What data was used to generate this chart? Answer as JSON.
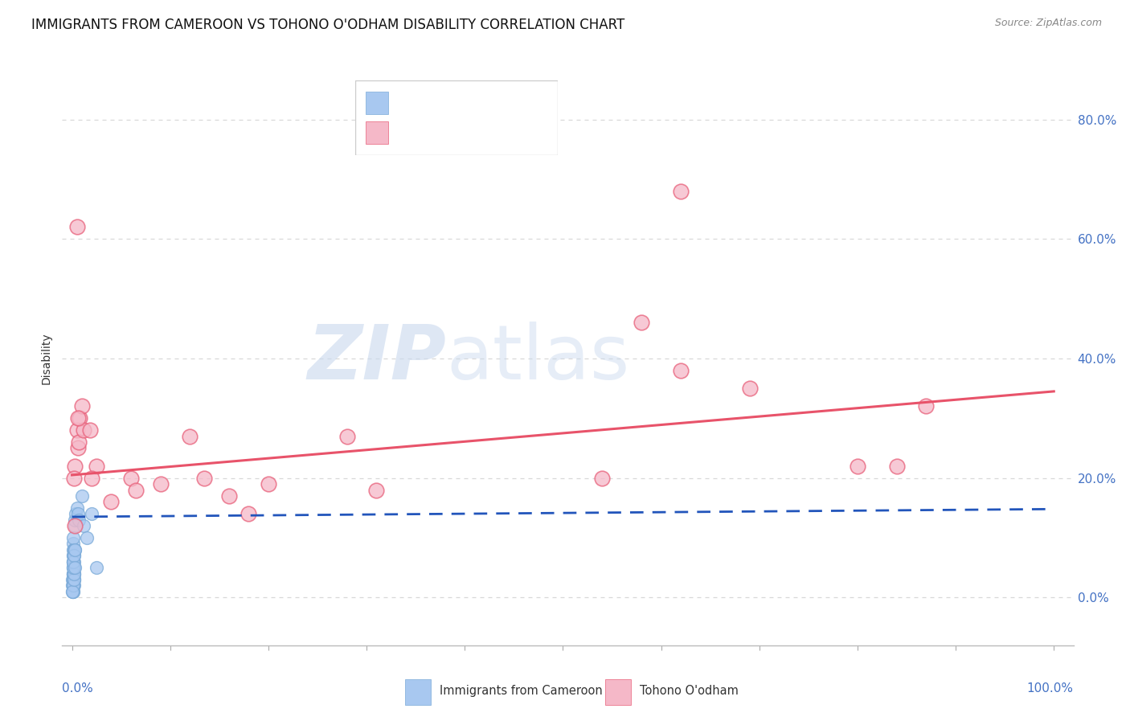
{
  "title": "IMMIGRANTS FROM CAMEROON VS TOHONO O'ODHAM DISABILITY CORRELATION CHART",
  "source": "Source: ZipAtlas.com",
  "ylabel": "Disability",
  "xlim": [
    -0.01,
    1.02
  ],
  "ylim": [
    -0.08,
    0.88
  ],
  "yticks": [
    0.0,
    0.2,
    0.4,
    0.6,
    0.8
  ],
  "ytick_labels": [
    "0.0%",
    "20.0%",
    "40.0%",
    "60.0%",
    "80.0%"
  ],
  "xtick_left_label": "0.0%",
  "xtick_right_label": "100.0%",
  "blue_color": "#a8c8f0",
  "blue_edge_color": "#7aaad8",
  "pink_color": "#f5b8c8",
  "pink_edge_color": "#e8607a",
  "blue_line_color": "#2255bb",
  "pink_line_color": "#e8536a",
  "blue_scatter": [
    [
      0.0005,
      0.02
    ],
    [
      0.001,
      0.04
    ],
    [
      0.001,
      0.06
    ],
    [
      0.0015,
      0.05
    ],
    [
      0.002,
      0.03
    ],
    [
      0.001,
      0.01
    ],
    [
      0.002,
      0.08
    ],
    [
      0.0015,
      0.07
    ],
    [
      0.001,
      0.09
    ],
    [
      0.002,
      0.05
    ],
    [
      0.0015,
      0.06
    ],
    [
      0.001,
      0.04
    ],
    [
      0.001,
      0.03
    ],
    [
      0.0008,
      0.02
    ],
    [
      0.002,
      0.04
    ],
    [
      0.002,
      0.05
    ],
    [
      0.0005,
      0.01
    ],
    [
      0.001,
      0.02
    ],
    [
      0.002,
      0.07
    ],
    [
      0.0008,
      0.06
    ],
    [
      0.0015,
      0.08
    ],
    [
      0.0005,
      0.03
    ],
    [
      0.002,
      0.04
    ],
    [
      0.0018,
      0.02
    ],
    [
      0.001,
      0.01
    ],
    [
      0.0008,
      0.05
    ],
    [
      0.002,
      0.03
    ],
    [
      0.0012,
      0.04
    ],
    [
      0.0008,
      0.02
    ],
    [
      0.002,
      0.06
    ],
    [
      0.0012,
      0.07
    ],
    [
      0.002,
      0.05
    ],
    [
      0.0008,
      0.04
    ],
    [
      0.0015,
      0.03
    ],
    [
      0.003,
      0.12
    ],
    [
      0.002,
      0.08
    ],
    [
      0.003,
      0.13
    ],
    [
      0.001,
      0.02
    ],
    [
      0.0005,
      0.01
    ],
    [
      0.002,
      0.03
    ],
    [
      0.002,
      0.04
    ],
    [
      0.001,
      0.05
    ],
    [
      0.0008,
      0.06
    ],
    [
      0.004,
      0.14
    ],
    [
      0.003,
      0.08
    ],
    [
      0.002,
      0.07
    ],
    [
      0.005,
      0.15
    ],
    [
      0.003,
      0.05
    ],
    [
      0.006,
      0.14
    ],
    [
      0.0015,
      0.1
    ],
    [
      0.003,
      0.08
    ],
    [
      0.007,
      0.13
    ],
    [
      0.01,
      0.17
    ],
    [
      0.012,
      0.12
    ],
    [
      0.015,
      0.1
    ],
    [
      0.02,
      0.14
    ],
    [
      0.025,
      0.05
    ]
  ],
  "pink_scatter": [
    [
      0.003,
      0.22
    ],
    [
      0.006,
      0.25
    ],
    [
      0.005,
      0.28
    ],
    [
      0.008,
      0.3
    ],
    [
      0.007,
      0.26
    ],
    [
      0.002,
      0.2
    ],
    [
      0.01,
      0.32
    ],
    [
      0.003,
      0.12
    ],
    [
      0.012,
      0.28
    ],
    [
      0.006,
      0.3
    ],
    [
      0.018,
      0.28
    ],
    [
      0.025,
      0.22
    ],
    [
      0.02,
      0.2
    ],
    [
      0.04,
      0.16
    ],
    [
      0.06,
      0.2
    ],
    [
      0.065,
      0.18
    ],
    [
      0.09,
      0.19
    ],
    [
      0.12,
      0.27
    ],
    [
      0.135,
      0.2
    ],
    [
      0.16,
      0.17
    ],
    [
      0.18,
      0.14
    ],
    [
      0.2,
      0.19
    ],
    [
      0.28,
      0.27
    ],
    [
      0.31,
      0.18
    ],
    [
      0.54,
      0.2
    ],
    [
      0.58,
      0.46
    ],
    [
      0.62,
      0.38
    ],
    [
      0.69,
      0.35
    ],
    [
      0.8,
      0.22
    ],
    [
      0.84,
      0.22
    ],
    [
      0.87,
      0.32
    ],
    [
      0.005,
      0.62
    ],
    [
      0.62,
      0.68
    ]
  ],
  "blue_line": [
    [
      0.0,
      0.135
    ],
    [
      0.025,
      0.14
    ],
    [
      1.0,
      0.148
    ]
  ],
  "pink_line": [
    [
      0.0,
      0.205
    ],
    [
      1.0,
      0.345
    ]
  ],
  "watermark_zip": "ZIP",
  "watermark_atlas": "atlas",
  "grid_color": "#d8d8d8",
  "background_color": "#ffffff",
  "title_fontsize": 12,
  "axis_label_fontsize": 10,
  "tick_fontsize": 11,
  "tick_color_right": "#4472c4",
  "num_color": "#4472c4"
}
